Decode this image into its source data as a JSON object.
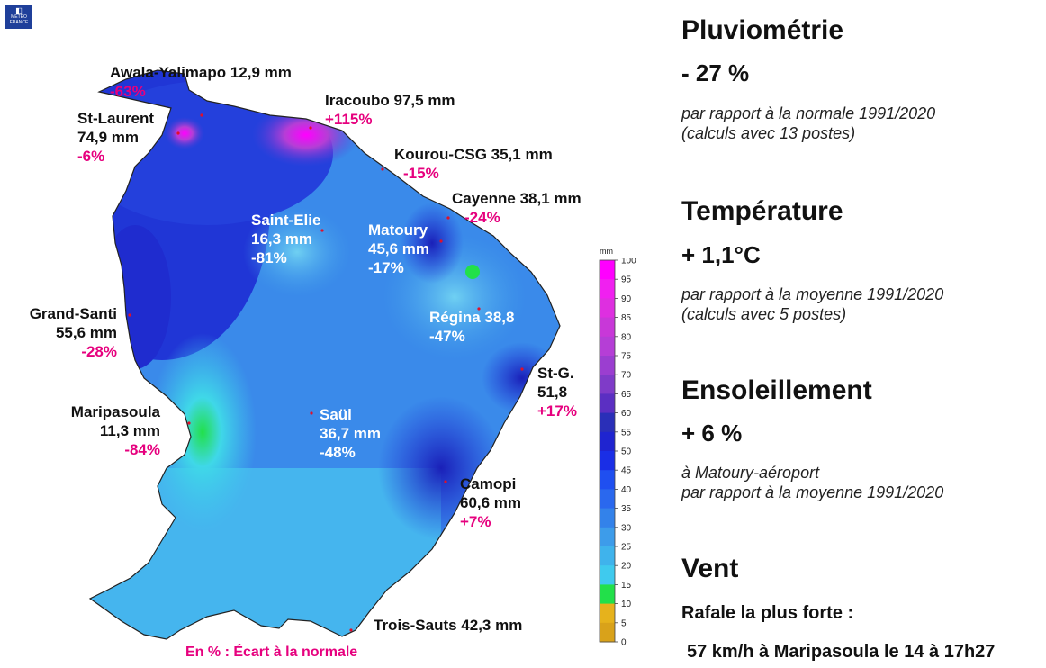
{
  "logo": {
    "line1": "MÉTÉO",
    "line2": "FRANCE"
  },
  "stations": [
    {
      "key": "awala",
      "name": "Awala-Yalimapo 12,9 mm",
      "pct": "-63%"
    },
    {
      "key": "iracoubo",
      "name": "Iracoubo 97,5 mm",
      "pct": "+115%"
    },
    {
      "key": "stlaurent",
      "name": "St-Laurent",
      "val": "74,9 mm",
      "pct": "-6%"
    },
    {
      "key": "kourou",
      "name": "Kourou-CSG 35,1 mm",
      "pct": "-15%"
    },
    {
      "key": "cayenne",
      "name": "Cayenne 38,1 mm",
      "pct": "-24%"
    },
    {
      "key": "saintelie",
      "name": "Saint-Elie",
      "val": "16,3 mm",
      "pct": "-81%"
    },
    {
      "key": "matoury",
      "name": "Matoury",
      "val": "45,6 mm",
      "pct": "-17%"
    },
    {
      "key": "regina",
      "name": "Régina 38,8",
      "pct": "-47%"
    },
    {
      "key": "grandsanti",
      "name": "Grand-Santi",
      "val": "55,6 mm",
      "pct": "-28%"
    },
    {
      "key": "stg",
      "name": "St-G.",
      "val": "51,8",
      "pct": "+17%"
    },
    {
      "key": "maripasoula",
      "name": "Maripasoula",
      "val": "11,3 mm",
      "pct": "-84%"
    },
    {
      "key": "saul",
      "name": "Saül",
      "val": "36,7 mm",
      "pct": "-48%"
    },
    {
      "key": "camopi",
      "name": "Camopi",
      "val": "60,6 mm",
      "pct": "+7%"
    },
    {
      "key": "troissauts",
      "name": "Trois-Sauts 42,3 mm"
    }
  ],
  "legend": {
    "unit": "mm",
    "ticks": [
      "100",
      "95",
      "90",
      "85",
      "80",
      "75",
      "70",
      "65",
      "60",
      "55",
      "50",
      "45",
      "40",
      "35",
      "30",
      "25",
      "20",
      "15",
      "10",
      "5",
      "0"
    ],
    "colors": [
      "#ff00ff",
      "#f020f0",
      "#de2fe0",
      "#c838d8",
      "#b53ed6",
      "#9b3ed0",
      "#7f3bc8",
      "#5b2fc2",
      "#2a2fb8",
      "#1f24d0",
      "#1a2ee6",
      "#1f4ff0",
      "#2a68ee",
      "#3382ea",
      "#3d9cea",
      "#3fb3ec",
      "#3fcaee",
      "#22e04a",
      "#e6b21c",
      "#d9a21a",
      "#b71c0c"
    ]
  },
  "note": "En % : Écart à la normale",
  "panel": {
    "pluvio": {
      "title": "Pluviométrie",
      "value": "- 27 %",
      "line1": "par rapport à la normale 1991/2020",
      "line2": "(calculs avec 13 postes)"
    },
    "temp": {
      "title": "Température",
      "value": "+ 1,1°C",
      "line1": "par rapport à la moyenne 1991/2020",
      "line2": "(calculs avec 5 postes)"
    },
    "sun": {
      "title": "Ensoleillement",
      "value": "+ 6 %",
      "line1": "à Matoury-aéroport",
      "line2": "par rapport à la moyenne 1991/2020"
    },
    "wind": {
      "title": "Vent",
      "sub": "Rafale la plus forte :",
      "detail": "57 km/h à Maripasoula le 14 à 17h27"
    }
  }
}
